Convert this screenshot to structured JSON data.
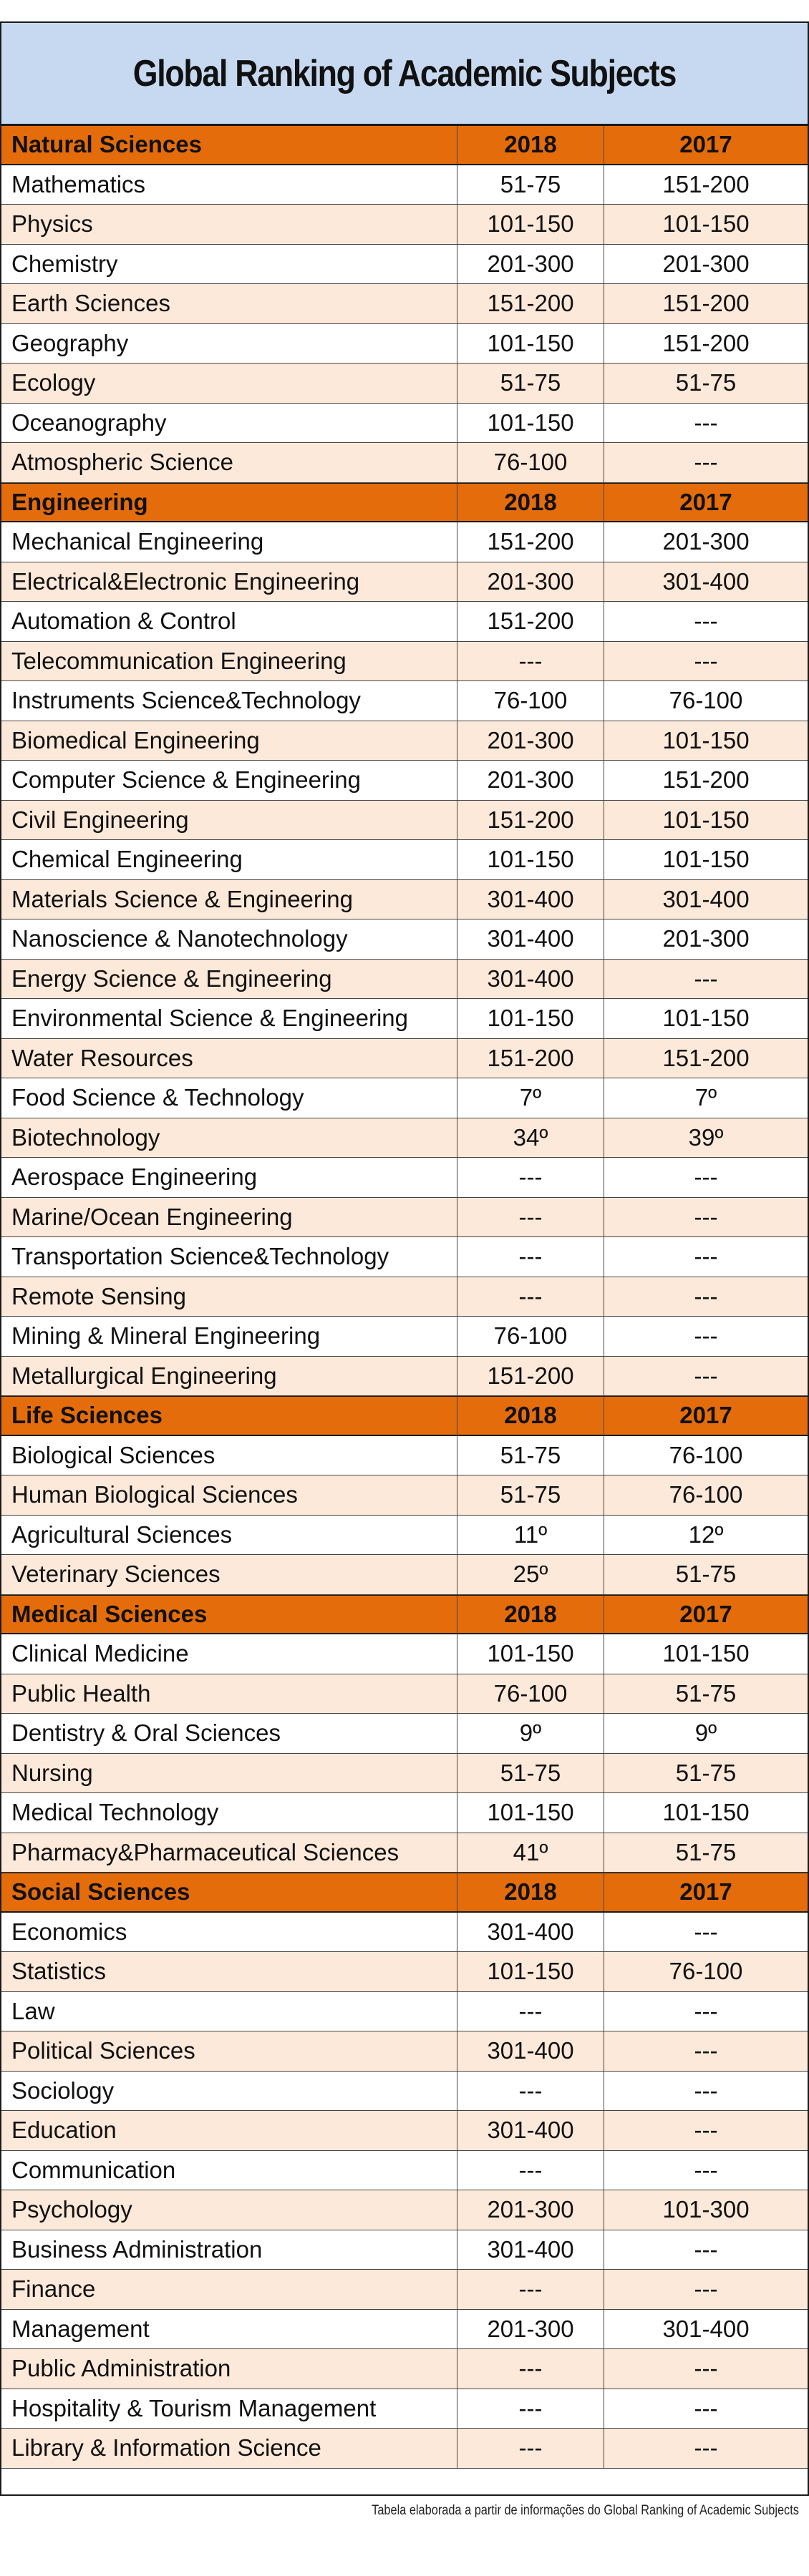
{
  "title": "Global Ranking of Academic Subjects",
  "footnote": "Tabela elaborada a partir de informações do Global Ranking of Academic Subjects",
  "colors": {
    "title_bg": "#c6d9f1",
    "header_bg": "#e46c0a",
    "stripe": "#fde9d9"
  },
  "sections": [
    {
      "name": "Natural Sciences",
      "col1": "2018",
      "col2": "2017",
      "rows": [
        [
          "Mathematics",
          "51-75",
          "151-200"
        ],
        [
          "Physics",
          "101-150",
          "101-150"
        ],
        [
          "Chemistry",
          "201-300",
          "201-300"
        ],
        [
          "Earth Sciences",
          "151-200",
          "151-200"
        ],
        [
          "Geography",
          "101-150",
          "151-200"
        ],
        [
          "Ecology",
          "51-75",
          "51-75"
        ],
        [
          "Oceanography",
          "101-150",
          "---"
        ],
        [
          "Atmospheric Science",
          "76-100",
          "---"
        ]
      ]
    },
    {
      "name": "Engineering",
      "col1": "2018",
      "col2": "2017",
      "rows": [
        [
          "Mechanical Engineering",
          "151-200",
          "201-300"
        ],
        [
          "Electrical&Electronic Engineering",
          "201-300",
          "301-400"
        ],
        [
          "Automation & Control",
          "151-200",
          "---"
        ],
        [
          "Telecommunication Engineering",
          "---",
          "---"
        ],
        [
          "Instruments Science&Technology",
          "76-100",
          "76-100"
        ],
        [
          "Biomedical Engineering",
          "201-300",
          "101-150"
        ],
        [
          "Computer Science & Engineering",
          "201-300",
          "151-200"
        ],
        [
          "Civil Engineering",
          "151-200",
          "101-150"
        ],
        [
          "Chemical Engineering",
          "101-150",
          "101-150"
        ],
        [
          "Materials Science & Engineering",
          "301-400",
          "301-400"
        ],
        [
          "Nanoscience & Nanotechnology",
          "301-400",
          "201-300"
        ],
        [
          "Energy Science & Engineering",
          "301-400",
          "---"
        ],
        [
          "Environmental Science & Engineering",
          "101-150",
          "101-150"
        ],
        [
          "Water Resources",
          "151-200",
          "151-200"
        ],
        [
          "Food Science & Technology",
          "7º",
          "7º"
        ],
        [
          "Biotechnology",
          "34º",
          "39º"
        ],
        [
          "Aerospace Engineering",
          "---",
          "---"
        ],
        [
          "Marine/Ocean Engineering",
          "---",
          "---"
        ],
        [
          "Transportation Science&Technology",
          "---",
          "---"
        ],
        [
          "Remote Sensing",
          "---",
          "---"
        ],
        [
          "Mining & Mineral Engineering",
          "76-100",
          "---"
        ],
        [
          "Metallurgical Engineering",
          "151-200",
          "---"
        ]
      ]
    },
    {
      "name": "Life Sciences",
      "col1": "2018",
      "col2": "2017",
      "rows": [
        [
          "Biological Sciences",
          "51-75",
          "76-100"
        ],
        [
          "Human Biological Sciences",
          "51-75",
          "76-100"
        ],
        [
          "Agricultural Sciences",
          "11º",
          "12º"
        ],
        [
          "Veterinary Sciences",
          "25º",
          "51-75"
        ]
      ]
    },
    {
      "name": "Medical Sciences",
      "col1": "2018",
      "col2": "2017",
      "rows": [
        [
          "Clinical Medicine",
          "101-150",
          "101-150"
        ],
        [
          "Public Health",
          "76-100",
          "51-75"
        ],
        [
          "Dentistry & Oral Sciences",
          "9º",
          "9º"
        ],
        [
          "Nursing",
          "51-75",
          "51-75"
        ],
        [
          "Medical Technology",
          "101-150",
          "101-150"
        ],
        [
          "Pharmacy&Pharmaceutical Sciences",
          "41º",
          "51-75"
        ]
      ]
    },
    {
      "name": "Social Sciences",
      "col1": "2018",
      "col2": "2017",
      "rows": [
        [
          "Economics",
          "301-400",
          "---"
        ],
        [
          "Statistics",
          "101-150",
          "76-100"
        ],
        [
          "Law",
          "---",
          "---"
        ],
        [
          "Political Sciences",
          "301-400",
          "---"
        ],
        [
          "Sociology",
          "---",
          "---"
        ],
        [
          "Education",
          "301-400",
          "---"
        ],
        [
          "Communication",
          "---",
          "---"
        ],
        [
          "Psychology",
          "201-300",
          "101-300"
        ],
        [
          "Business Administration",
          "301-400",
          "---"
        ],
        [
          "Finance",
          "---",
          "---"
        ],
        [
          "Management",
          "201-300",
          "301-400"
        ],
        [
          "Public Administration",
          "---",
          "---"
        ],
        [
          "Hospitality & Tourism Management",
          "---",
          "---"
        ],
        [
          "Library & Information Science",
          "---",
          "---"
        ]
      ]
    }
  ]
}
